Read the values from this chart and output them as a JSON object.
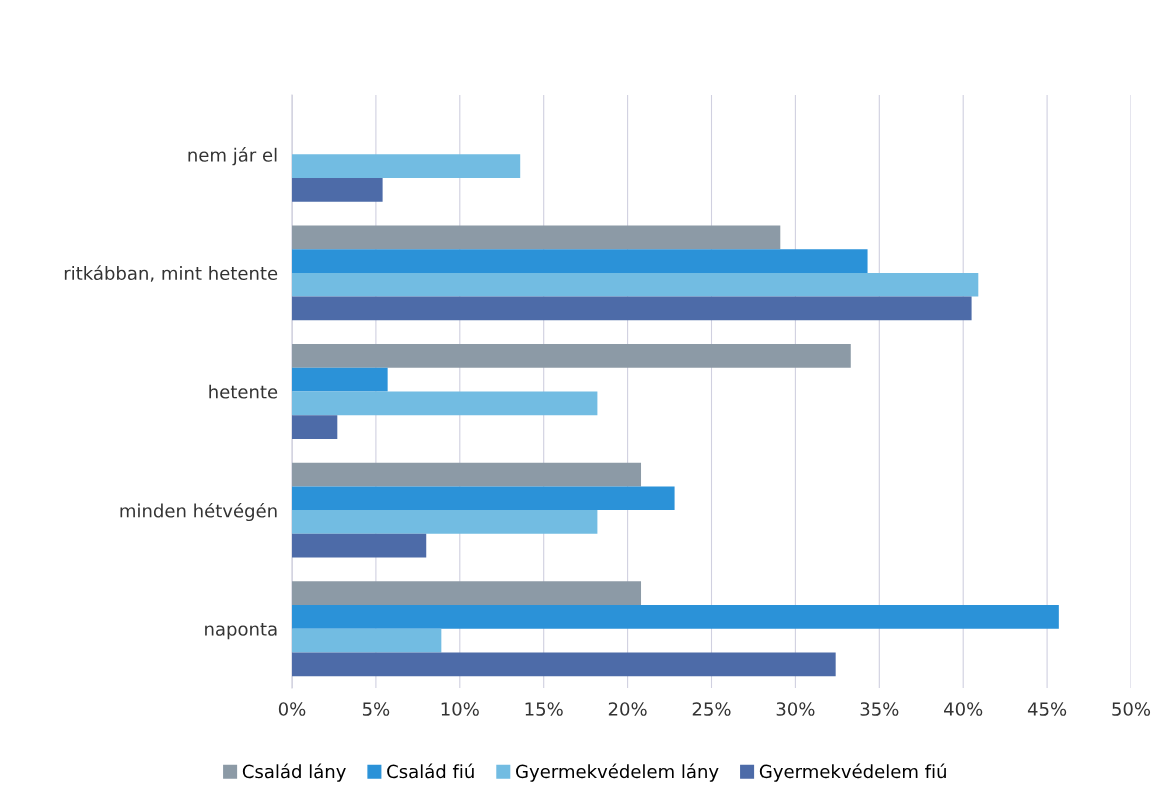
{
  "chart_data": {
    "type": "bar",
    "orientation": "horizontal",
    "categories": [
      "nem jár el",
      "ritkábban, mint hetente",
      "hetente",
      "minden hétvégén",
      "naponta"
    ],
    "series": [
      {
        "name": "Család lány",
        "color": "#8c9aa6",
        "values": [
          0,
          29.1,
          33.3,
          20.8,
          20.8
        ]
      },
      {
        "name": "Család fiú",
        "color": "#2b92d8",
        "values": [
          0,
          34.3,
          5.7,
          22.8,
          45.7
        ]
      },
      {
        "name": "Gyermekvédelem lány",
        "color": "#72bce2",
        "values": [
          13.6,
          40.9,
          18.2,
          18.2,
          8.9
        ]
      },
      {
        "name": "Gyermekvédelem fiú",
        "color": "#4d6ba8",
        "values": [
          5.4,
          40.5,
          2.7,
          8.0,
          32.4
        ]
      }
    ],
    "xlim": [
      0,
      50
    ],
    "xticks": [
      {
        "value": 0,
        "label": "0%"
      },
      {
        "value": 5,
        "label": "5%"
      },
      {
        "value": 10,
        "label": "10%"
      },
      {
        "value": 15,
        "label": "15%"
      },
      {
        "value": 20,
        "label": "20%"
      },
      {
        "value": 25,
        "label": "25%"
      },
      {
        "value": 30,
        "label": "30%"
      },
      {
        "value": 35,
        "label": "35%"
      },
      {
        "value": 40,
        "label": "40%"
      },
      {
        "value": 45,
        "label": "45%"
      },
      {
        "value": 50,
        "label": "50%"
      }
    ],
    "grid": "x",
    "legend": "bottom"
  }
}
